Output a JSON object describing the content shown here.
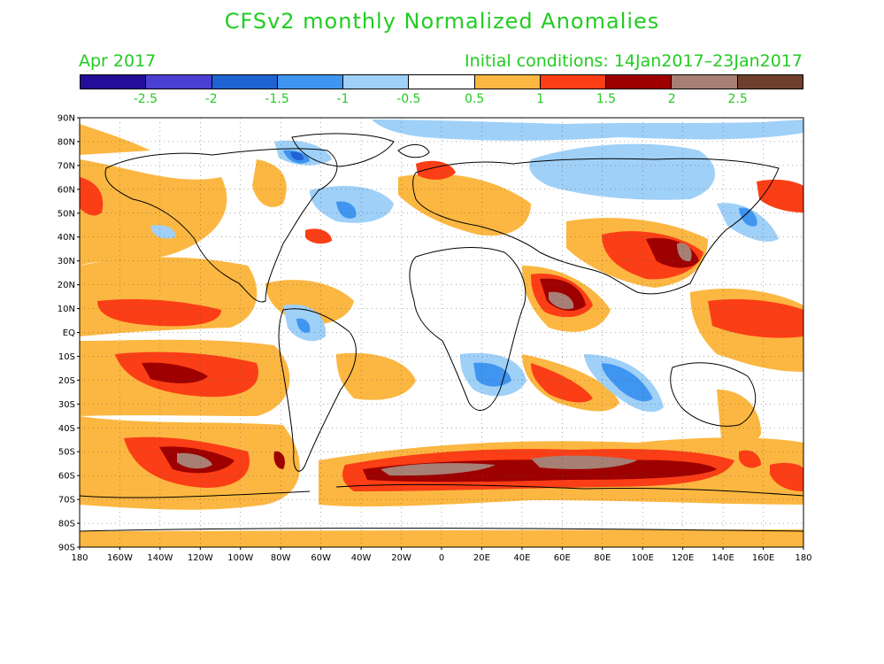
{
  "title": "CFSv2 monthly Normalized Anomalies",
  "month_label": "Apr 2017",
  "init_label": "Initial conditions: 14Jan2017–23Jan2017",
  "colorbar": {
    "colors": [
      "#230d99",
      "#4b3fd4",
      "#1f62d1",
      "#3f95f0",
      "#9fd0f8",
      "#ffffff",
      "#fbb741",
      "#fb3e16",
      "#9e0000",
      "#a77f74",
      "#70402f"
    ],
    "labels": [
      "-2.5",
      "-2",
      "-1.5",
      "-1",
      "-0.5",
      "0.5",
      "1",
      "1.5",
      "2",
      "2.5"
    ]
  },
  "lat_labels": [
    "90N",
    "80N",
    "70N",
    "60N",
    "50N",
    "40N",
    "30N",
    "20N",
    "10N",
    "EQ",
    "10S",
    "20S",
    "30S",
    "40S",
    "50S",
    "60S",
    "70S",
    "80S",
    "90S"
  ],
  "lon_labels": [
    "180",
    "160W",
    "140W",
    "120W",
    "100W",
    "80W",
    "60W",
    "40W",
    "20W",
    "0",
    "20E",
    "40E",
    "60E",
    "80E",
    "100E",
    "120E",
    "140E",
    "160E",
    "180"
  ]
}
